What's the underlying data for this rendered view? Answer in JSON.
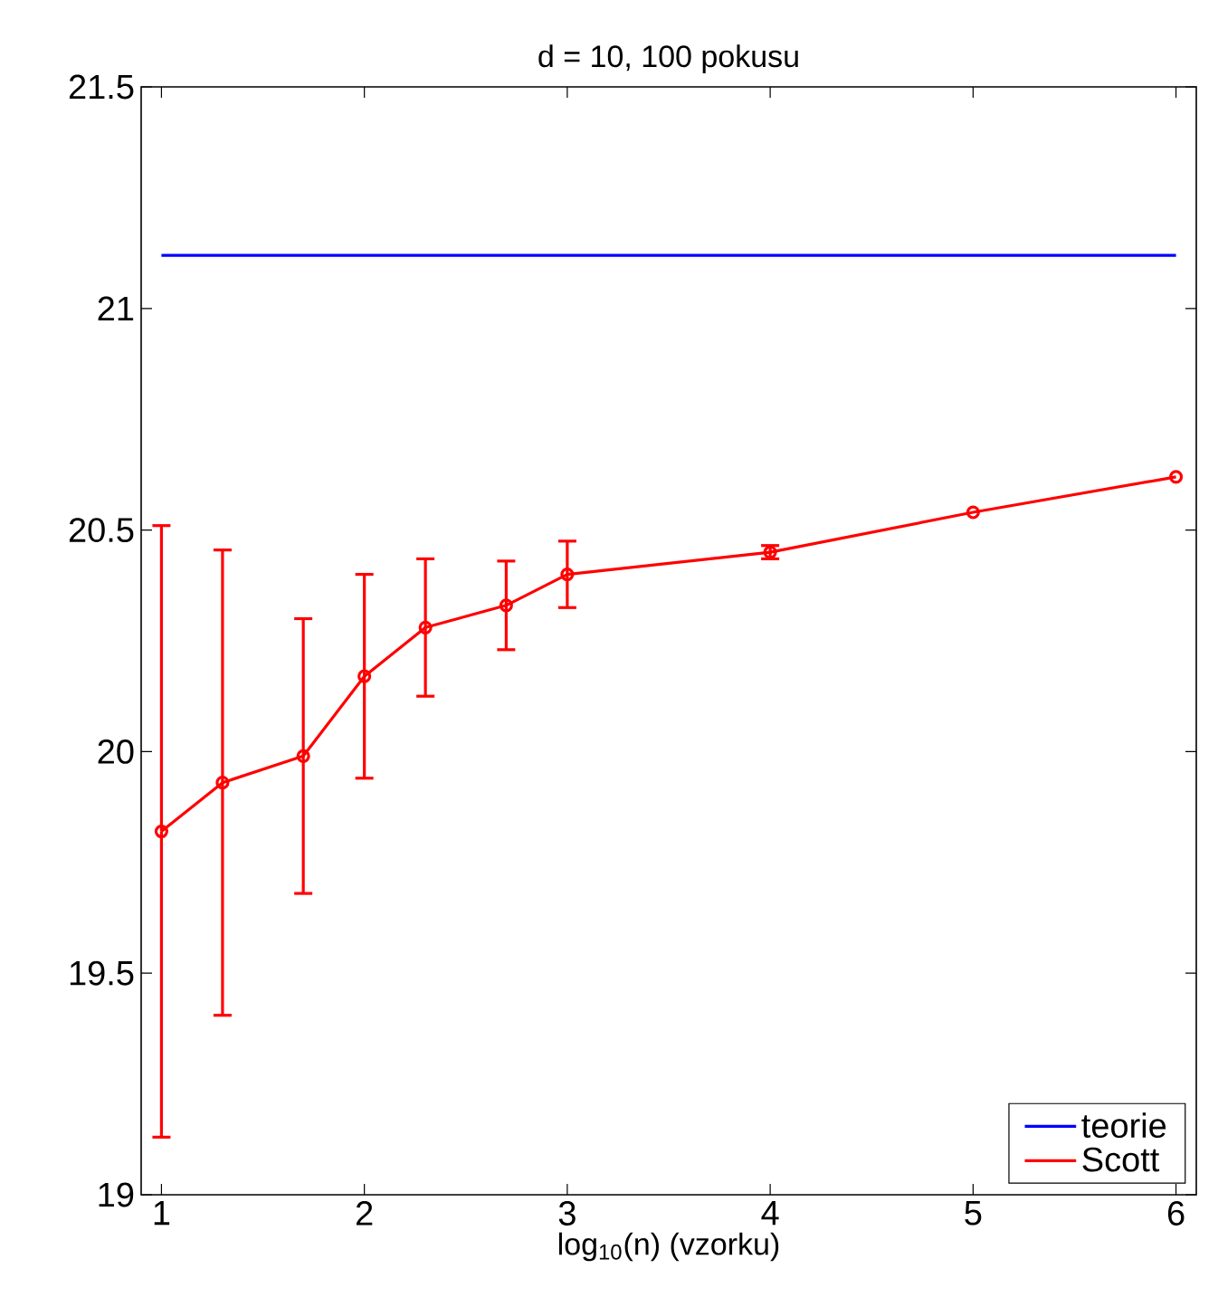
{
  "chart_data": {
    "type": "line",
    "title": "d = 10, 100 pokusu",
    "xlabel": "log$_{10}$(n) (vzorku)",
    "xlim": [
      0.9,
      6.1
    ],
    "ylim": [
      19,
      21.5
    ],
    "xticks": [
      1,
      2,
      3,
      4,
      5,
      6
    ],
    "yticks": [
      19,
      19.5,
      20,
      20.5,
      21,
      21.5
    ],
    "grid": false,
    "legend": "bottom right",
    "marker": "circle",
    "series": [
      {
        "name": "teorie",
        "color": "#0000ff",
        "marker": "none",
        "x": [
          1,
          6
        ],
        "values": [
          21.12,
          21.12
        ]
      },
      {
        "name": "Scott",
        "color": "#ff0000",
        "x": [
          1,
          1.301,
          1.699,
          2,
          2.301,
          2.699,
          3,
          4,
          5,
          6
        ],
        "values": [
          19.82,
          19.93,
          19.99,
          20.17,
          20.28,
          20.33,
          20.4,
          20.45,
          20.54,
          20.62
        ],
        "errors": [
          0.69,
          0.525,
          0.31,
          0.23,
          0.155,
          0.1,
          0.075,
          0.015,
          null,
          null
        ]
      }
    ]
  }
}
